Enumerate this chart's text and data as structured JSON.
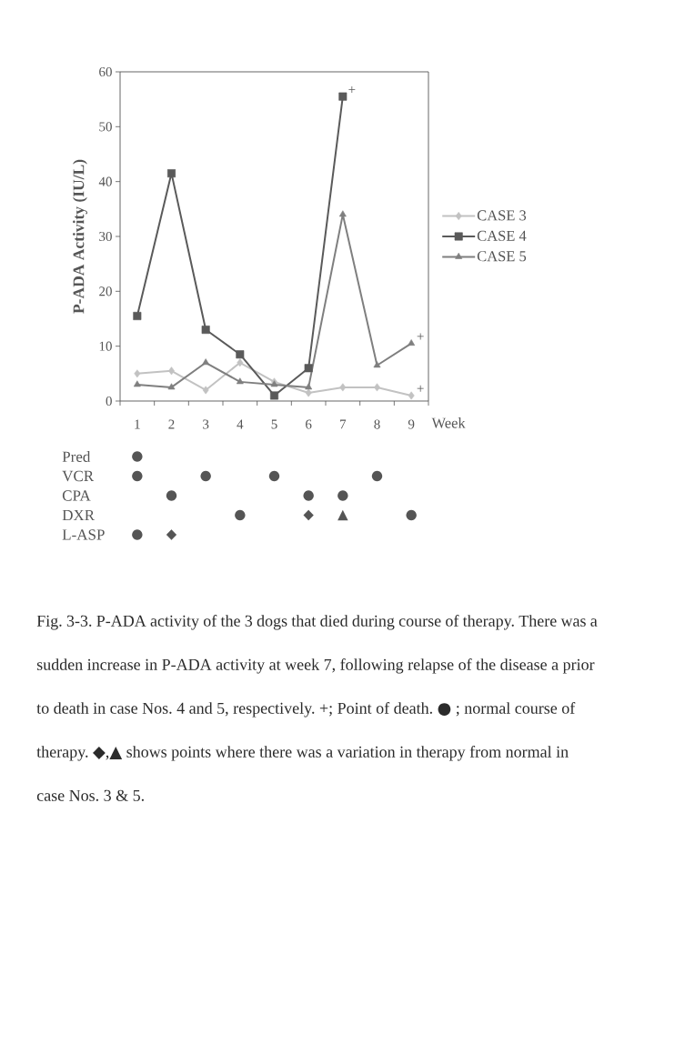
{
  "chart_data": [
    {
      "type": "line",
      "xlabel": "Week",
      "ylabel": "P-ADA Activity (IU/L)",
      "categories": [
        "1",
        "2",
        "3",
        "4",
        "5",
        "6",
        "7",
        "8",
        "9"
      ],
      "ylim": [
        0,
        60
      ],
      "yticks": [
        0,
        10,
        20,
        30,
        40,
        50,
        60
      ],
      "legend": "right",
      "series": [
        {
          "name": "CASE 3",
          "color": "#c2c2c2",
          "marker": "diamond",
          "values": [
            5,
            5.5,
            2,
            7,
            3.5,
            1.5,
            2.5,
            2.5,
            1
          ]
        },
        {
          "name": "CASE 4",
          "color": "#5a5a5a",
          "marker": "square",
          "values": [
            15.5,
            41.5,
            13,
            8.5,
            1,
            6,
            55.5,
            null,
            null
          ]
        },
        {
          "name": "CASE 5",
          "color": "#7f7f7f",
          "marker": "triangle",
          "values": [
            3,
            2.5,
            7,
            3.5,
            3,
            2.5,
            34,
            6.5,
            10.5
          ]
        }
      ],
      "annotations": [
        {
          "text": "+",
          "x": "7",
          "y": 55.5
        },
        {
          "text": "+",
          "x": "9",
          "y": 10.5
        },
        {
          "text": "+",
          "x": "9",
          "y": 1
        }
      ]
    },
    {
      "type": "other",
      "y_categories": [
        "Pred",
        "VCR",
        "CPA",
        "DXR",
        "L-ASP"
      ],
      "cell_labels": [
        [
          "●",
          null,
          null,
          null,
          null,
          null,
          null,
          null,
          null
        ],
        [
          "●",
          null,
          "●",
          null,
          "●",
          null,
          null,
          "●",
          null
        ],
        [
          null,
          "●",
          null,
          null,
          null,
          "●",
          "●",
          null,
          null
        ],
        [
          null,
          null,
          null,
          "●",
          null,
          "◆",
          "▲",
          null,
          "●"
        ],
        [
          "●",
          "◆",
          null,
          null,
          null,
          null,
          null,
          null,
          null
        ]
      ],
      "annotations": [
        "Fig. 3-3. P-ADA activity of the 3 dogs that died during course of therapy. There was a sudden increase in P-ADA activity at week 7, following relapse of the disease a prior to death in case Nos. 4 and 5, respectively. +; Point of death. ● ; normal course of therapy. ◆,▲ shows points where there was a variation in therapy from normal in case Nos. 3 & 5."
      ]
    }
  ]
}
